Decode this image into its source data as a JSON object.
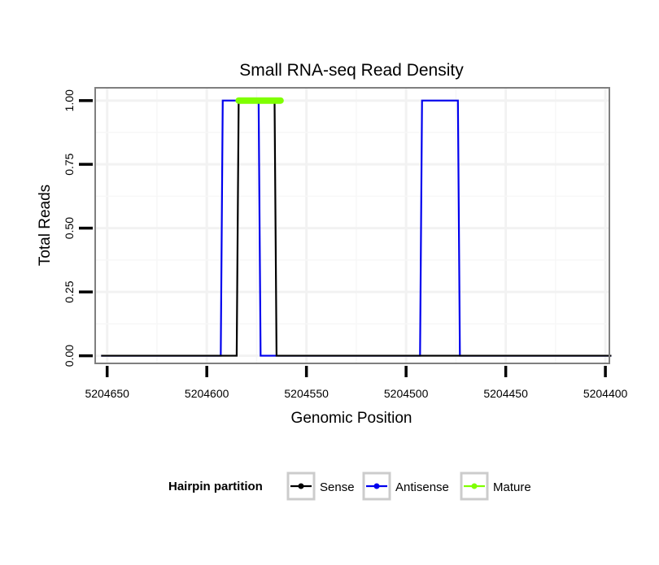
{
  "chart_data": {
    "type": "line",
    "title": "Small RNA-seq Read Density",
    "xlabel": "Genomic Position",
    "ylabel": "Total Reads",
    "x_reversed": true,
    "xlim": [
      5204656,
      5204398
    ],
    "ylim": [
      -0.03,
      1.05
    ],
    "x_ticks": [
      5204650,
      5204600,
      5204550,
      5204500,
      5204450,
      5204400
    ],
    "x_tick_labels": [
      "5204650",
      "5204600",
      "5204550",
      "5204500",
      "5204450",
      "5204400"
    ],
    "y_ticks": [
      0.0,
      0.25,
      0.5,
      0.75,
      1.0
    ],
    "y_tick_labels": [
      "0.00",
      "0.25",
      "0.50",
      "0.75",
      "1.00"
    ],
    "grid": true,
    "legend": {
      "position": "bottom",
      "title": "Hairpin partition",
      "entries": [
        "Sense",
        "Antisense",
        "Mature"
      ]
    },
    "series": [
      {
        "name": "Antisense",
        "color": "#0000ee",
        "x": [
          5204653,
          5204593,
          5204592,
          5204574,
          5204573,
          5204493,
          5204492,
          5204474,
          5204473,
          5204397
        ],
        "y": [
          0,
          0,
          1,
          1,
          0,
          0,
          1,
          1,
          0,
          0
        ]
      },
      {
        "name": "Sense",
        "color": "#000000",
        "x": [
          5204653,
          5204585,
          5204584,
          5204566,
          5204565,
          5204397
        ],
        "y": [
          0,
          0,
          1,
          1,
          0,
          0
        ]
      },
      {
        "name": "Mature",
        "color": "#7fff00",
        "x": [
          5204584,
          5204563
        ],
        "y": [
          1,
          1
        ]
      }
    ]
  }
}
